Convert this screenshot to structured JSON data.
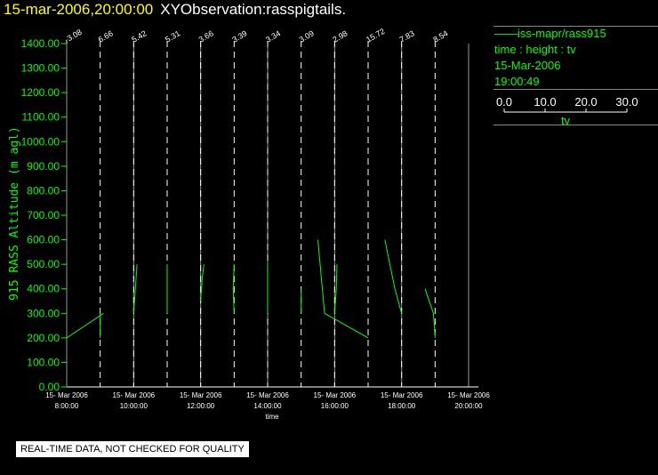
{
  "title": {
    "date": "15-mar-2006,20:00:00",
    "name": "XYObservation:rasspigtails."
  },
  "legend": {
    "series": "——iss-mapr/rass915",
    "fields": "time : height : tv",
    "date": "15-Mar-2006",
    "time": "19:00:49",
    "scale_ticks": [
      "0.0",
      "10.0",
      "20.0",
      "30.0"
    ],
    "scale_label": "tv"
  },
  "footer": "REAL-TIME DATA, NOT CHECKED FOR QUALITY",
  "chart_data": {
    "type": "line",
    "ylabel": "915 RASS Altitude (m agl)",
    "xlabel": "time",
    "ylim": [
      0,
      1400
    ],
    "xlim_hours": [
      8,
      20
    ],
    "yticks": [
      "0.00",
      "100.00",
      "200.00",
      "300.00",
      "400.00",
      "500.00",
      "600.00",
      "700.00",
      "800.00",
      "900.00",
      "1000.00",
      "1100.00",
      "1200.00",
      "1300.00",
      "1400.00"
    ],
    "xticks": [
      {
        "h": 8,
        "d": "15- Mar 2006",
        "t": "8:00:00"
      },
      {
        "h": 10,
        "d": "15- Mar 2006",
        "t": "10:00:00"
      },
      {
        "h": 12,
        "d": "15- Mar 2006",
        "t": "12:00:00"
      },
      {
        "h": 14,
        "d": "15- Mar 2006",
        "t": "14:00:00"
      },
      {
        "h": 16,
        "d": "15- Mar 2006",
        "t": "16:00:00"
      },
      {
        "h": 18,
        "d": "15- Mar 2006",
        "t": "18:00:00"
      },
      {
        "h": 20,
        "d": "15- Mar 2006",
        "t": "20:00:00"
      }
    ],
    "profile_hours": [
      8,
      9,
      10,
      11,
      12,
      13,
      14,
      15,
      16,
      17,
      18,
      19
    ],
    "profile_labels": [
      "-3.08",
      "6.66",
      "5.42",
      "5.31",
      "3.66",
      "3.39",
      "3.34",
      "3.09",
      "2.98",
      "15.72",
      "7.83",
      "8.54"
    ],
    "series_color": "#00ff00",
    "segments": [
      [
        [
          8,
          200
        ],
        [
          9.1,
          300
        ]
      ],
      [
        [
          9,
          300
        ],
        [
          9,
          200
        ]
      ],
      [
        [
          10,
          300
        ],
        [
          10.05,
          400
        ],
        [
          10.1,
          500
        ]
      ],
      [
        [
          11,
          300
        ],
        [
          11,
          500
        ]
      ],
      [
        [
          12,
          350
        ],
        [
          12.05,
          450
        ],
        [
          12.1,
          500
        ]
      ],
      [
        [
          13,
          300
        ],
        [
          12.97,
          400
        ],
        [
          13,
          500
        ]
      ],
      [
        [
          14,
          300
        ],
        [
          14,
          500
        ]
      ],
      [
        [
          15,
          300
        ],
        [
          15,
          400
        ]
      ],
      [
        [
          15.5,
          600
        ],
        [
          15.7,
          300
        ],
        [
          17,
          200
        ]
      ],
      [
        [
          16,
          300
        ],
        [
          16.05,
          400
        ],
        [
          16.07,
          500
        ]
      ],
      [
        [
          17.5,
          600
        ],
        [
          17.8,
          400
        ],
        [
          18,
          300
        ]
      ],
      [
        [
          18.7,
          400
        ],
        [
          18.95,
          300
        ],
        [
          19,
          200
        ]
      ]
    ]
  }
}
